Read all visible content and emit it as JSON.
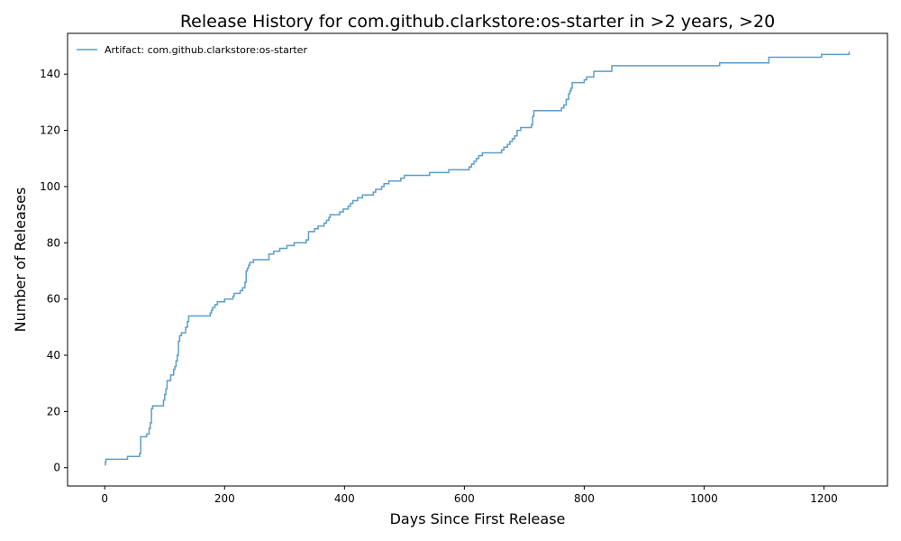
{
  "chart_data": {
    "type": "line",
    "title": "Release History for com.github.clarkstore:os-starter in >2 years, >20",
    "xlabel": "Days Since First Release",
    "ylabel": "Number of Releases",
    "xlim": [
      -62,
      1306
    ],
    "ylim": [
      -6.5,
      154.5
    ],
    "xticks": [
      0,
      200,
      400,
      600,
      800,
      1000,
      1200
    ],
    "yticks": [
      0,
      20,
      40,
      60,
      80,
      100,
      120,
      140
    ],
    "grid": false,
    "legend_position": "upper-left",
    "series": [
      {
        "name": "Artifact: com.github.clarkstore:os-starter",
        "color": "#5b9ec9",
        "step": "post",
        "x": [
          0,
          1,
          2,
          36,
          38,
          58,
          60,
          61,
          70,
          74,
          76,
          78,
          80,
          82,
          84,
          98,
          100,
          102,
          104,
          110,
          115,
          117,
          119,
          121,
          123,
          125,
          128,
          130,
          135,
          138,
          140,
          142,
          144,
          176,
          178,
          180,
          184,
          188,
          200,
          214,
          216,
          226,
          230,
          234,
          236,
          238,
          240,
          242,
          248,
          254,
          258,
          274,
          282,
          292,
          304,
          316,
          336,
          340,
          350,
          356,
          366,
          370,
          374,
          376,
          380,
          392,
          398,
          406,
          410,
          414,
          422,
          430,
          448,
          452,
          462,
          466,
          474,
          480,
          494,
          500,
          542,
          574,
          608,
          612,
          616,
          620,
          624,
          630,
          662,
          666,
          672,
          676,
          680,
          684,
          688,
          694,
          712,
          714,
          716,
          758,
          762,
          766,
          770,
          774,
          776,
          778,
          780,
          800,
          804,
          816,
          846,
          1026,
          1108,
          1196,
          1240,
          1242
        ],
        "y": [
          1,
          2,
          3,
          3,
          4,
          5,
          11,
          11,
          12,
          14,
          16,
          21,
          22,
          22,
          22,
          24,
          26,
          28,
          31,
          33,
          35,
          36,
          38,
          40,
          45,
          47,
          48,
          48,
          50,
          52,
          54,
          54,
          54,
          55,
          56,
          57,
          58,
          59,
          60,
          61,
          62,
          63,
          64,
          66,
          70,
          71,
          72,
          73,
          74,
          74,
          74,
          76,
          77,
          78,
          79,
          80,
          81,
          84,
          85,
          86,
          87,
          88,
          89,
          90,
          90,
          91,
          92,
          93,
          94,
          95,
          96,
          97,
          98,
          99,
          100,
          101,
          102,
          102,
          103,
          104,
          105,
          106,
          107,
          108,
          109,
          110,
          111,
          112,
          113,
          114,
          115,
          116,
          117,
          118,
          120,
          121,
          122,
          125,
          127,
          127,
          128,
          129,
          131,
          133,
          134,
          135,
          137,
          138,
          139,
          141,
          143,
          144,
          146,
          147,
          147,
          148
        ]
      }
    ]
  }
}
